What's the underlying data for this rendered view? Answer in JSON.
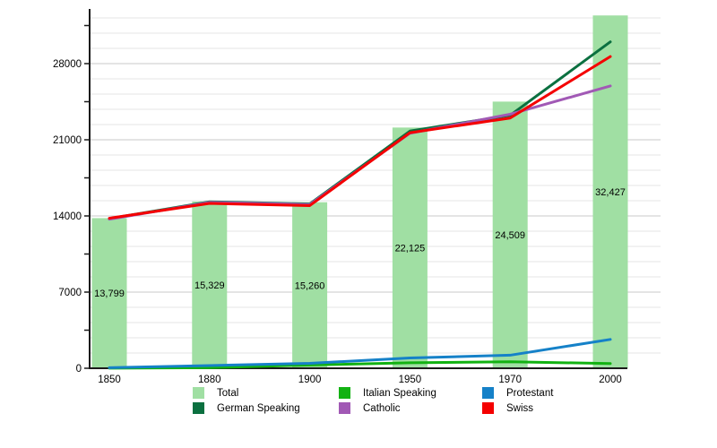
{
  "chart_data": {
    "type": "combo-bar-line",
    "title": "",
    "xlabel": "",
    "ylabel": "",
    "categories": [
      "1850",
      "1880",
      "1900",
      "1950",
      "1970",
      "2000"
    ],
    "bar_series": {
      "name": "Total",
      "color": "#a0dfa3",
      "values": [
        13799,
        15329,
        15260,
        22125,
        24509,
        32427
      ],
      "labels": [
        "13,799",
        "15,329",
        "15,260",
        "22,125",
        "24,509",
        "32,427"
      ]
    },
    "line_series": [
      {
        "name": "German Speaking",
        "color": "#0b7040",
        "values": [
          13750,
          15300,
          15100,
          21800,
          23250,
          30000
        ]
      },
      {
        "name": "Italian Speaking",
        "color": "#12b212",
        "values": [
          10,
          50,
          300,
          500,
          600,
          430
        ]
      },
      {
        "name": "Protestant",
        "color": "#1581c8",
        "values": [
          50,
          250,
          450,
          950,
          1200,
          2650
        ]
      },
      {
        "name": "Catholic",
        "color": "#a159b5",
        "values": [
          13700,
          15250,
          15050,
          21600,
          23350,
          25950
        ]
      },
      {
        "name": "Swiss",
        "color": "#f40000",
        "values": [
          13790,
          15150,
          14950,
          21650,
          23000,
          28650
        ]
      }
    ],
    "ylim": [
      0,
      32900
    ],
    "yticks": [
      0,
      7000,
      14000,
      21000,
      28000
    ],
    "ytick_labels": [
      "0",
      "7000",
      "14000",
      "21000",
      "28000"
    ],
    "grid_minor_step": 1400,
    "axis_tick_step": 3500,
    "grid": true,
    "legend_position": "bottom",
    "legend_columns": [
      [
        "Total",
        "German Speaking"
      ],
      [
        "Italian Speaking",
        "Catholic"
      ],
      [
        "Protestant",
        "Swiss"
      ]
    ],
    "style": {
      "background": "#ffffff",
      "axis_color": "#1a1a1a",
      "grid_minor_color": "#e4e4e4",
      "grid_major_color": "#c9c9c9",
      "text_color": "#000000"
    }
  }
}
